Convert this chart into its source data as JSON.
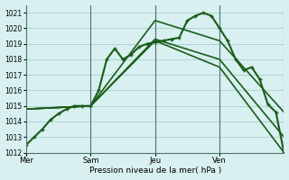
{
  "background_color": "#d8f0f0",
  "plot_bg_color": "#d8f0f0",
  "grid_color": "#a0c8c8",
  "line_color": "#1a5c1a",
  "title": "Pression niveau de la mer( hPa )",
  "xlabel": "Pression niveau de la mer( hPa )",
  "ylim": [
    1012,
    1021.5
  ],
  "yticks": [
    1012,
    1013,
    1014,
    1015,
    1016,
    1017,
    1018,
    1019,
    1020,
    1021
  ],
  "day_positions": [
    0,
    8,
    16,
    24,
    32
  ],
  "day_labels": [
    "Mer",
    "Sam",
    "Jeu",
    "Ven",
    ""
  ],
  "series": [
    {
      "x": [
        0,
        1,
        2,
        3,
        4,
        5,
        6,
        7,
        8,
        9,
        10,
        11,
        12,
        13,
        14,
        15,
        16,
        17,
        18,
        19,
        20,
        21,
        22,
        23,
        24,
        25,
        26,
        27,
        28,
        29,
        30,
        31,
        32
      ],
      "y": [
        1012.5,
        1013.0,
        1013.5,
        1014.1,
        1014.5,
        1014.8,
        1015.0,
        1015.0,
        1015.0,
        1016.0,
        1018.0,
        1018.7,
        1018.0,
        1018.3,
        1018.8,
        1019.0,
        1019.1,
        1019.2,
        1019.3,
        1019.4,
        1020.5,
        1020.8,
        1021.0,
        1020.8,
        1020.0,
        1019.2,
        1018.0,
        1017.3,
        1017.5,
        1016.7,
        1015.1,
        1014.6,
        1012.0
      ],
      "marker": "+",
      "linestyle": "-",
      "linewidth": 1.5
    },
    {
      "x": [
        0,
        8,
        16,
        24,
        32
      ],
      "y": [
        1014.8,
        1015.0,
        1019.2,
        1017.5,
        1012.0
      ],
      "marker": "None",
      "linestyle": "-",
      "linewidth": 1.2
    },
    {
      "x": [
        0,
        8,
        16,
        24,
        32
      ],
      "y": [
        1014.8,
        1015.0,
        1019.3,
        1018.0,
        1013.0
      ],
      "marker": "None",
      "linestyle": "-",
      "linewidth": 1.2
    },
    {
      "x": [
        0,
        8,
        16,
        24,
        32
      ],
      "y": [
        1014.8,
        1015.0,
        1020.5,
        1019.2,
        1014.6
      ],
      "marker": "None",
      "linestyle": "-",
      "linewidth": 1.2
    }
  ]
}
